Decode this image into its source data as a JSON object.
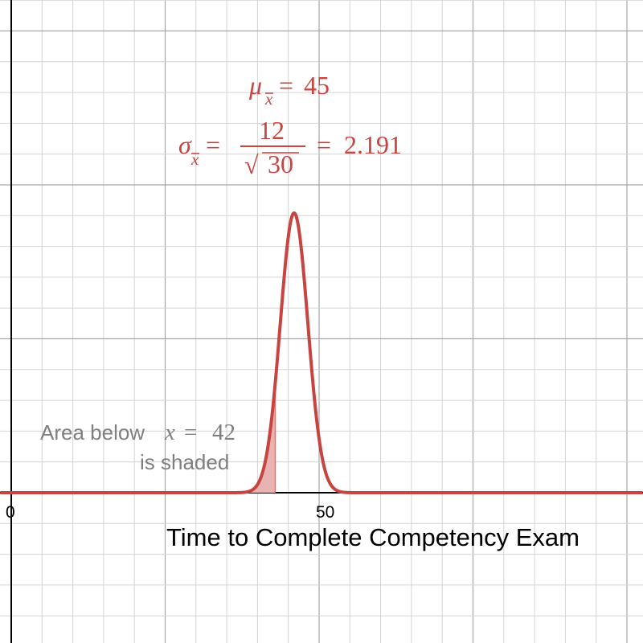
{
  "chart_data": {
    "type": "line",
    "title": "",
    "xlabel": "Time to Complete Competency Exam",
    "ylabel": "",
    "xlim": [
      -1.75,
      100.5
    ],
    "grid": true,
    "x_ticks": [
      "0",
      "50"
    ],
    "series": [
      {
        "distribution": "normal",
        "mean": 45,
        "sd": 2.191,
        "color": "#c74440",
        "shade_below": 42,
        "shade_color": "#e8b3b1"
      }
    ],
    "annotations": {
      "mean_symbol": "μ",
      "mean_sub": "x",
      "mean_value": "45",
      "sd_symbol": "σ",
      "sd_sub": "x",
      "sd_numerator": "12",
      "sd_radicand": "30",
      "sd_value": "2.191",
      "equals": "=",
      "radical": "√"
    },
    "shade_note": {
      "line1_text": "Area below",
      "line1_var": "x",
      "line1_eq": "=",
      "line1_value": "42",
      "line2_text": "is shaded"
    }
  }
}
